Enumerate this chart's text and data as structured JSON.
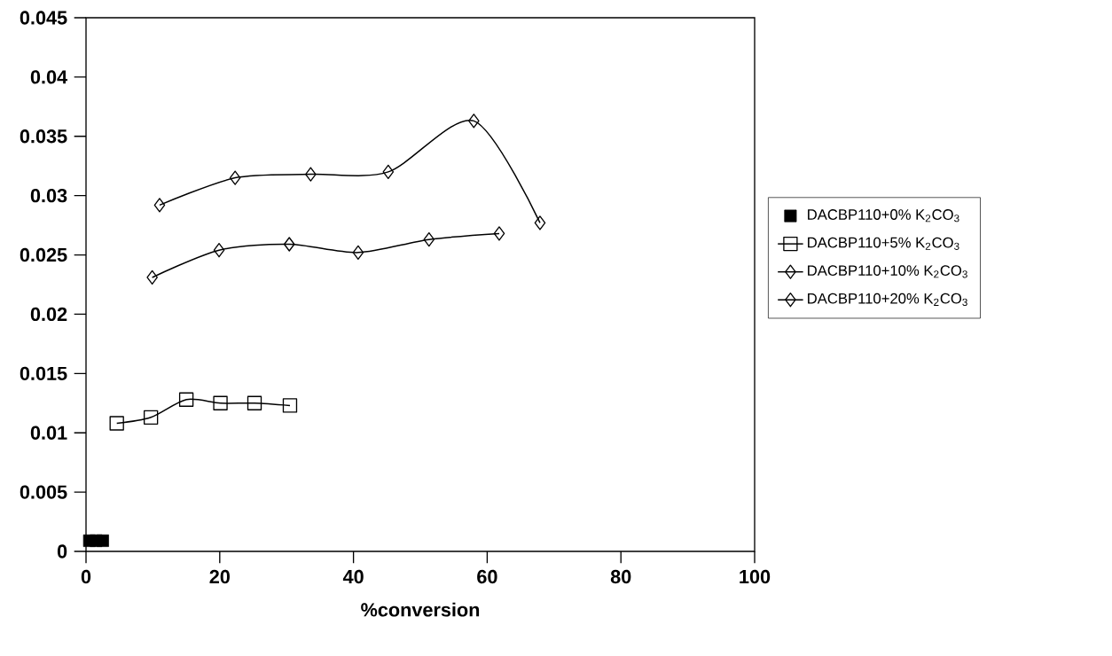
{
  "chart_data": {
    "type": "line",
    "xlabel": "%conversion",
    "xlim": [
      0,
      100
    ],
    "xticks": [
      0,
      20,
      40,
      60,
      80,
      100
    ],
    "ylim": [
      0,
      0.045
    ],
    "yticks": [
      0,
      0.005,
      0.01,
      0.015,
      0.02,
      0.025,
      0.03,
      0.035,
      0.04,
      0.045
    ],
    "legend": "right",
    "grid": false,
    "series": [
      {
        "name": "DACBP110+0%  K$_{2}$CO$_{3}$",
        "type": "scatter",
        "marker": "square",
        "color": "#000000",
        "x": [
          0.5,
          1.5,
          2.5
        ],
        "values": [
          0.0009,
          0.0009,
          0.0009
        ]
      },
      {
        "name": "DACBP110+5%  K$_{2}$CO$_{3}$",
        "marker": "square",
        "line_style": "solid",
        "color": "#000000",
        "x": [
          4.6,
          9.7,
          15.0,
          20.1,
          25.2,
          30.5
        ],
        "values": [
          0.0108,
          0.0113,
          0.0128,
          0.0125,
          0.0125,
          0.0123
        ]
      },
      {
        "name": "DACBP110+10% K$_{2}$CO$_{3}$",
        "marker": "diamond",
        "line_style": "solid",
        "color": "#000000",
        "x": [
          9.9,
          19.9,
          30.4,
          40.7,
          51.3,
          61.8
        ],
        "values": [
          0.0231,
          0.0254,
          0.0259,
          0.0252,
          0.0263,
          0.0268
        ]
      },
      {
        "name": "DACBP110+20% K$_{2}$CO$_{3}$",
        "marker": "diamond",
        "line_style": "solid",
        "color": "#000000",
        "x": [
          11.0,
          22.3,
          33.6,
          45.2,
          58.0,
          67.9
        ],
        "values": [
          0.0292,
          0.0315,
          0.0318,
          0.032,
          0.0363,
          0.0277
        ]
      }
    ]
  }
}
